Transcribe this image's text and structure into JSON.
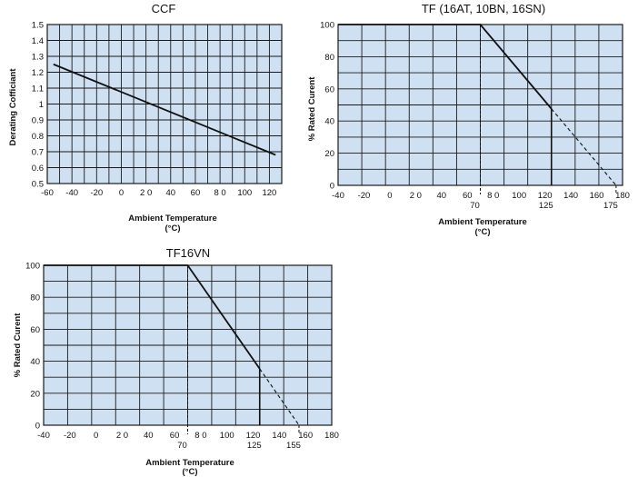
{
  "colors": {
    "plot_background": "#cfe0f2",
    "grid": "#1a1a1a",
    "line": "#111111"
  },
  "chart_data": [
    {
      "type": "line",
      "title": "CCF",
      "xlabel": "Ambient Temperature",
      "xlabel_unit": "(°C)",
      "ylabel": "Derating Cofficiant",
      "xlim": [
        -60,
        130
      ],
      "ylim": [
        0.5,
        1.5
      ],
      "x_tick_labels": [
        "-60",
        "-40",
        "-20",
        "0",
        "2 0",
        "40",
        "60",
        "8 0",
        "100",
        "120"
      ],
      "y_tick_labels": [
        "0.5",
        "0.6",
        "0.7",
        "0.8",
        "0.9",
        "1",
        "1.1",
        "1.2",
        "1.3",
        "1.4",
        "1.5"
      ],
      "grid": true,
      "series": [
        {
          "x": [
            -55,
            125
          ],
          "y": [
            1.25,
            0.68
          ]
        }
      ]
    },
    {
      "type": "line",
      "title": "TF (16AT, 10BN, 16SN)",
      "xlabel": "Ambient Temperature",
      "xlabel_unit": "(°C)",
      "ylabel": "% Rated Curent",
      "xlim": [
        -40,
        180
      ],
      "ylim": [
        0,
        100
      ],
      "x_tick_labels": [
        "-40",
        "-20",
        "0",
        "2 0",
        "40",
        "60",
        "8 0",
        "100",
        "120",
        "140",
        "160",
        "180"
      ],
      "y_tick_labels": [
        "0",
        "20",
        "40",
        "60",
        "80",
        "100"
      ],
      "marker_labels": [
        "70",
        "125",
        "175"
      ],
      "grid": true,
      "series": [
        {
          "x": [
            -40,
            70,
            125
          ],
          "y": [
            100,
            100,
            47.6
          ],
          "style": "solid"
        },
        {
          "x": [
            125,
            175
          ],
          "y": [
            47.6,
            0
          ],
          "style": "dashed"
        }
      ],
      "reference_lines": [
        {
          "x": 70,
          "y_to": 100,
          "style": "dashed"
        },
        {
          "x": 125,
          "y_to": 47.6,
          "style": "solid"
        },
        {
          "x": 175,
          "y_to": 0,
          "style": "dashed"
        }
      ]
    },
    {
      "type": "line",
      "title": "TF16VN",
      "xlabel": "Ambient Temperature",
      "xlabel_unit": "(°C)",
      "ylabel": "% Rated Curent",
      "xlim": [
        -40,
        180
      ],
      "ylim": [
        0,
        100
      ],
      "x_tick_labels": [
        "-40",
        "-20",
        "0",
        "2 0",
        "40",
        "60",
        "8 0",
        "100",
        "120",
        "140",
        "160",
        "180"
      ],
      "y_tick_labels": [
        "0",
        "20",
        "40",
        "60",
        "80",
        "100"
      ],
      "marker_labels": [
        "70",
        "125",
        "155"
      ],
      "grid": true,
      "series": [
        {
          "x": [
            -40,
            70,
            125
          ],
          "y": [
            100,
            100,
            35.3
          ],
          "style": "solid"
        },
        {
          "x": [
            125,
            155
          ],
          "y": [
            35.3,
            0
          ],
          "style": "dashed"
        }
      ],
      "reference_lines": [
        {
          "x": 70,
          "y_to": 100,
          "style": "dashed"
        },
        {
          "x": 125,
          "y_to": 35.3,
          "style": "solid"
        },
        {
          "x": 155,
          "y_to": 0,
          "style": "dashed"
        }
      ]
    }
  ]
}
